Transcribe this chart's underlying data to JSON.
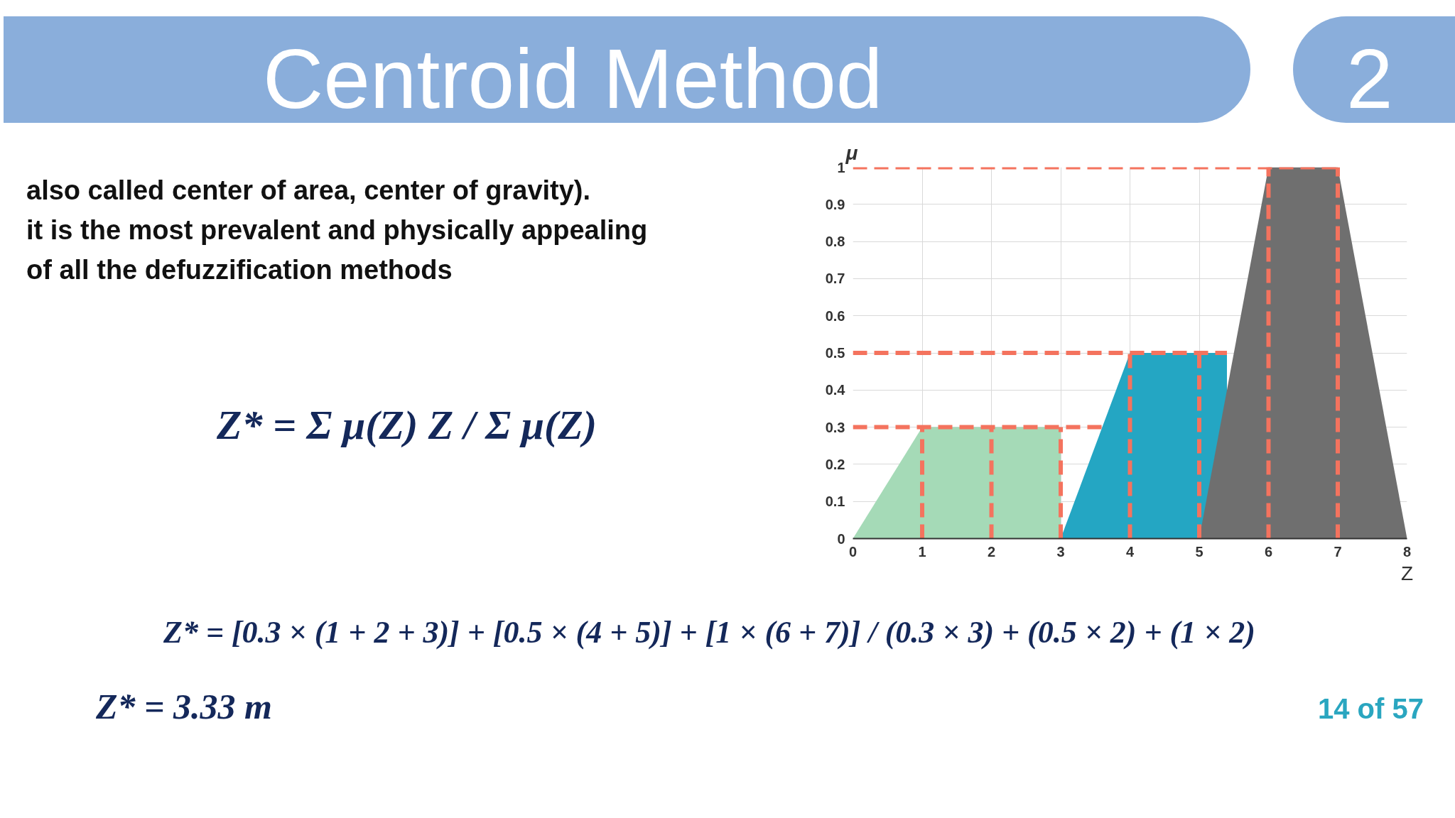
{
  "chart_data": {
    "type": "area",
    "title": "Centroid Method",
    "xlabel": "Z",
    "ylabel": "μ",
    "xlim": [
      0,
      8
    ],
    "ylim": [
      0,
      1
    ],
    "xticks": [
      0,
      1,
      2,
      3,
      4,
      5,
      6,
      7,
      8
    ],
    "yticks": [
      0,
      0.1,
      0.2,
      0.3,
      0.4,
      0.5,
      0.6,
      0.7,
      0.8,
      0.9,
      1
    ],
    "grid": true,
    "series": [
      {
        "color": "#a5dab7",
        "x": [
          0,
          1,
          3,
          3
        ],
        "values": [
          0,
          0.3,
          0.3,
          0
        ]
      },
      {
        "color": "#24a6c3",
        "x": [
          3,
          4,
          5.4,
          5.4
        ],
        "values": [
          0,
          0.5,
          0.5,
          0
        ]
      },
      {
        "color": "#6f6f6f",
        "x": [
          5,
          6,
          7,
          8
        ],
        "values": [
          0,
          1,
          1,
          0
        ]
      },
      {
        "type": "line",
        "line_style": "dashed",
        "color": "#f4735e",
        "x": [
          0,
          7
        ],
        "values": [
          1,
          1
        ]
      },
      {
        "type": "line",
        "line_style": "dashed",
        "color": "#f4735e",
        "x": [
          0,
          5.4
        ],
        "values": [
          0.5,
          0.5
        ]
      },
      {
        "type": "line",
        "line_style": "dashed",
        "color": "#f4735e",
        "x": [
          0,
          3.6
        ],
        "values": [
          0.3,
          0.3
        ]
      },
      {
        "type": "line",
        "line_style": "dashed",
        "color": "#f4735e",
        "x": [
          1,
          1
        ],
        "values": [
          0,
          0.3
        ]
      },
      {
        "type": "line",
        "line_style": "dashed",
        "color": "#f4735e",
        "x": [
          2,
          2
        ],
        "values": [
          0,
          0.3
        ]
      },
      {
        "type": "line",
        "line_style": "dashed",
        "color": "#f4735e",
        "x": [
          3,
          3
        ],
        "values": [
          0,
          0.3
        ]
      },
      {
        "type": "line",
        "line_style": "dashed",
        "color": "#f4735e",
        "x": [
          4,
          4
        ],
        "values": [
          0,
          0.5
        ]
      },
      {
        "type": "line",
        "line_style": "dashed",
        "color": "#f4735e",
        "x": [
          5,
          5
        ],
        "values": [
          0,
          0.5
        ]
      },
      {
        "type": "line",
        "line_style": "dashed",
        "color": "#f4735e",
        "x": [
          6,
          6
        ],
        "values": [
          0,
          1
        ]
      },
      {
        "type": "line",
        "line_style": "dashed",
        "color": "#f4735e",
        "x": [
          7,
          7
        ],
        "values": [
          0,
          1
        ]
      }
    ],
    "annotations": [
      "2",
      "also called center of area, center of gravity).",
      "it is the most prevalent and physically appealing",
      "of all the defuzzification methods",
      "Z* = Σ μ(Z) Z / Σ μ(Z)",
      "Z* = [0.3 × (1 + 2 + 3)] + [0.5 × (4 + 5)] + [1 × (6 + 7)] / (0.3 × 3) + (0.5 × 2) + (1 × 2)",
      "Z* = 3.33 m",
      "14 of 57"
    ]
  }
}
